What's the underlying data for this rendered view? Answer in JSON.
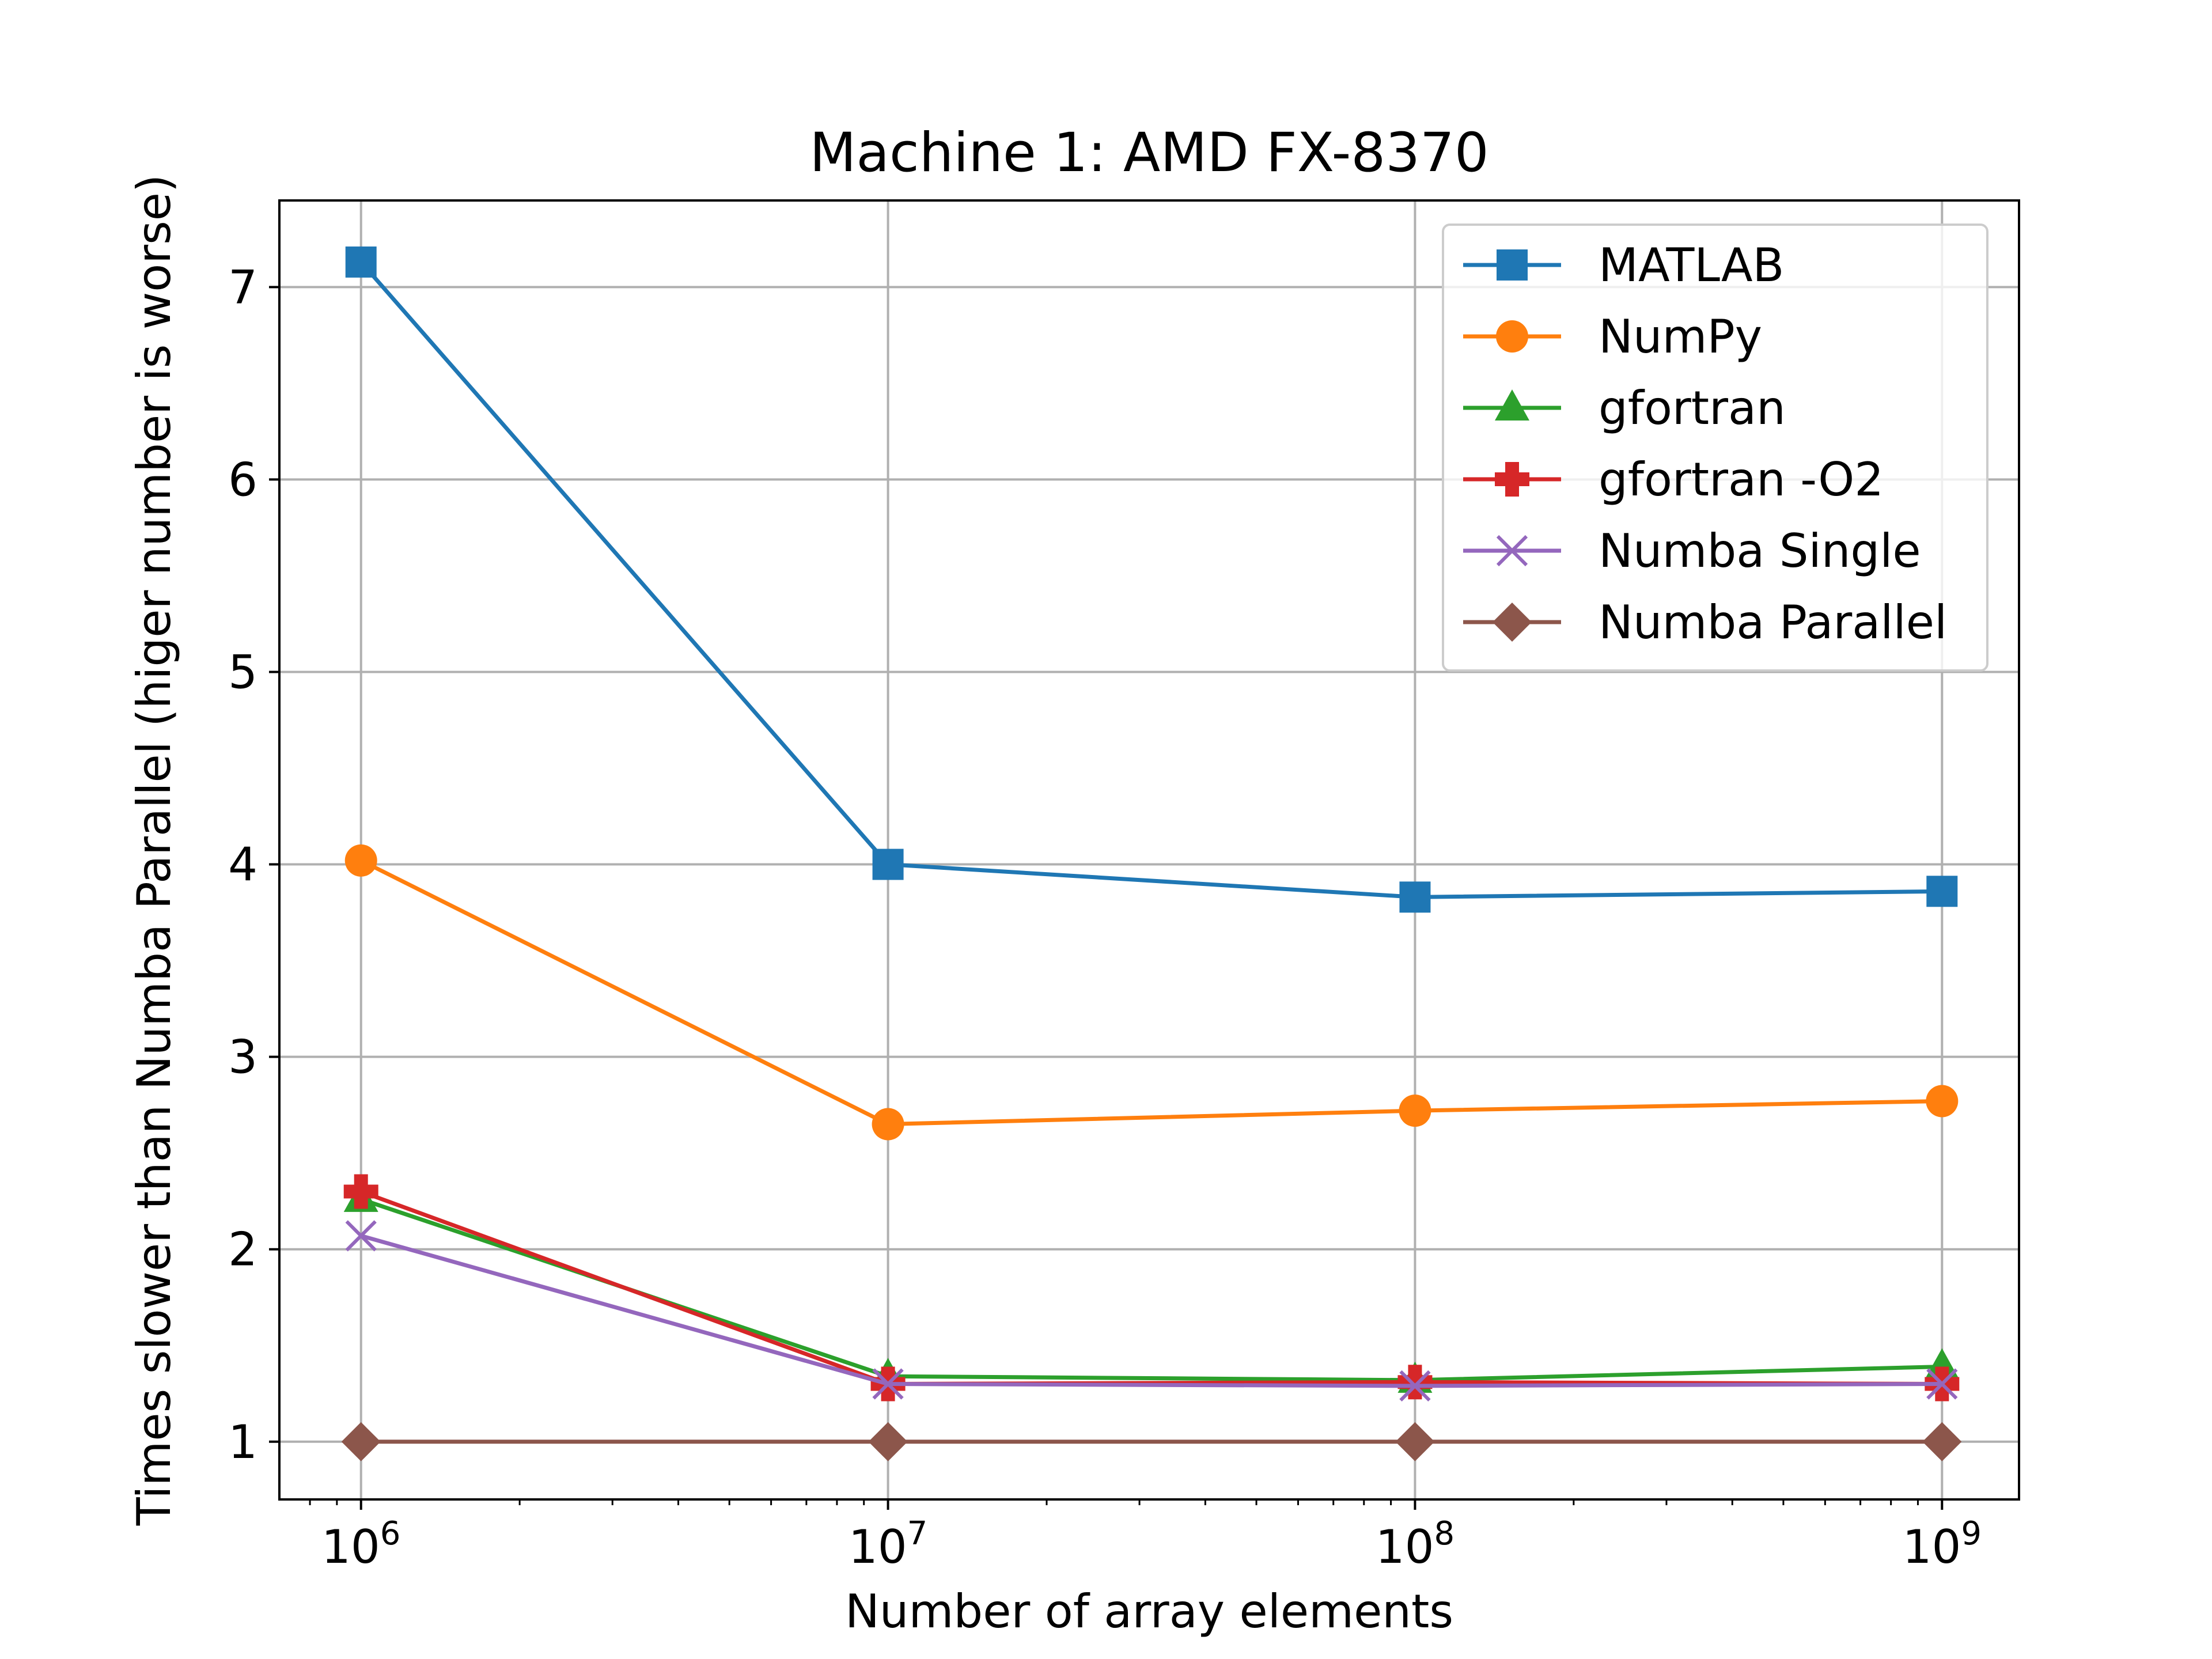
{
  "chart_data": {
    "type": "line",
    "title": "Machine 1: AMD FX-8370",
    "xlabel": "Number of array elements",
    "ylabel": "Times slower than Numba Parallel (higer number is worse)",
    "x_scale": "log",
    "x": [
      1000000,
      10000000,
      100000000,
      1000000000
    ],
    "x_tick_labels": [
      {
        "base": "10",
        "exp": "6"
      },
      {
        "base": "10",
        "exp": "7"
      },
      {
        "base": "10",
        "exp": "8"
      },
      {
        "base": "10",
        "exp": "9"
      }
    ],
    "xlim": [
      700000,
      1400000000
    ],
    "ylim": [
      0.7,
      7.45
    ],
    "y_ticks": [
      "1",
      "2",
      "3",
      "4",
      "5",
      "6",
      "7"
    ],
    "grid": true,
    "legend_position": "top-right",
    "series": [
      {
        "name": "MATLAB",
        "color": "#1f77b4",
        "marker": "square",
        "values": [
          7.13,
          4.0,
          3.83,
          3.86
        ]
      },
      {
        "name": "NumPy",
        "color": "#ff7f0e",
        "marker": "circle",
        "values": [
          4.02,
          2.65,
          2.72,
          2.77
        ]
      },
      {
        "name": "gfortran",
        "color": "#2ca02c",
        "marker": "triangle",
        "values": [
          2.26,
          1.34,
          1.32,
          1.39
        ]
      },
      {
        "name": "gfortran -O2",
        "color": "#d62728",
        "marker": "plus",
        "values": [
          2.3,
          1.3,
          1.31,
          1.3
        ]
      },
      {
        "name": "Numba Single",
        "color": "#9467bd",
        "marker": "x",
        "values": [
          2.07,
          1.3,
          1.29,
          1.3
        ]
      },
      {
        "name": "Numba Parallel",
        "color": "#8c564b",
        "marker": "diamond",
        "values": [
          1.0,
          1.0,
          1.0,
          1.0
        ]
      }
    ]
  }
}
